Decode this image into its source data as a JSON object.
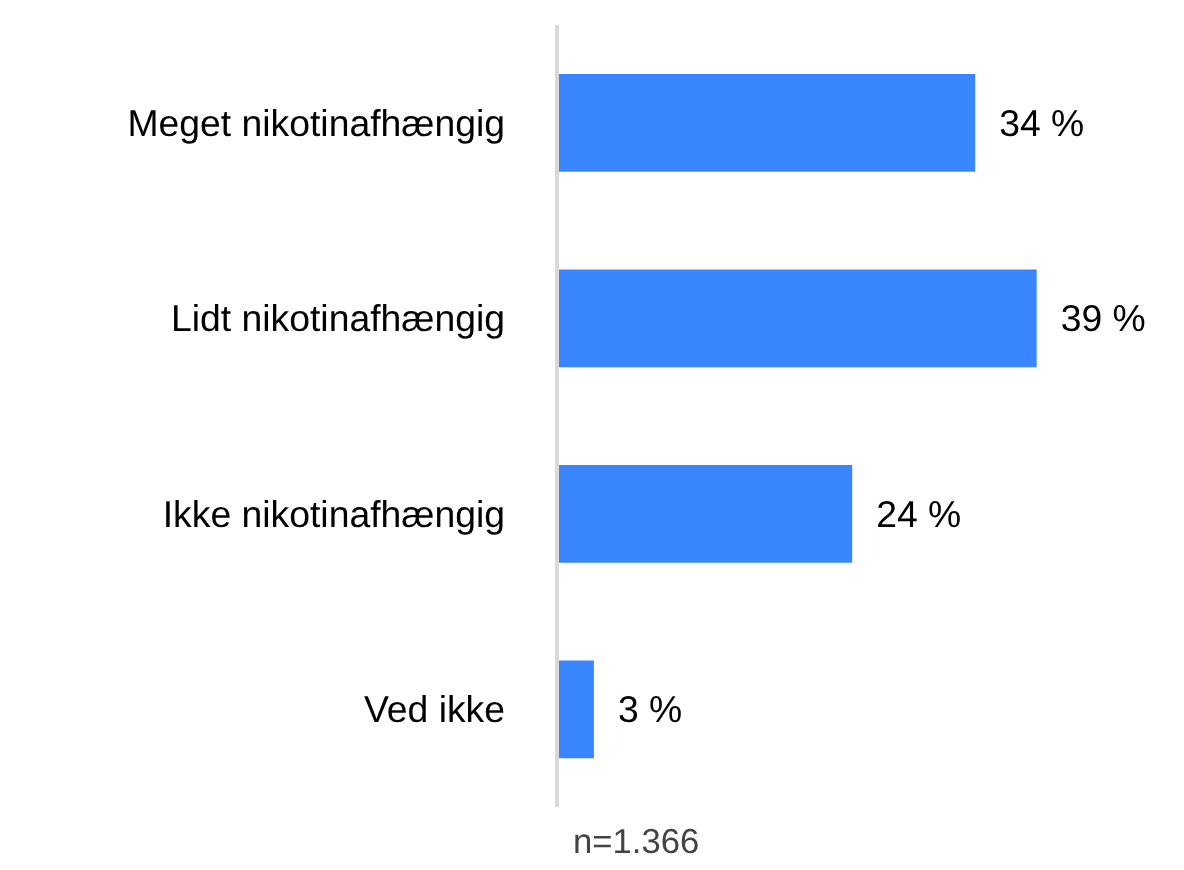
{
  "chart_data": {
    "type": "bar",
    "orientation": "horizontal",
    "categories": [
      "Meget nikotinafhængig",
      "Lidt nikotinafhængig",
      "Ikke nikotinafhængig",
      "Ved ikke"
    ],
    "values": [
      34,
      39,
      24,
      3
    ],
    "value_labels": [
      "34 %",
      "39 %",
      "24 %",
      "3 %"
    ],
    "color": "#3a86ff",
    "annotations": [
      "n=1.366"
    ]
  }
}
